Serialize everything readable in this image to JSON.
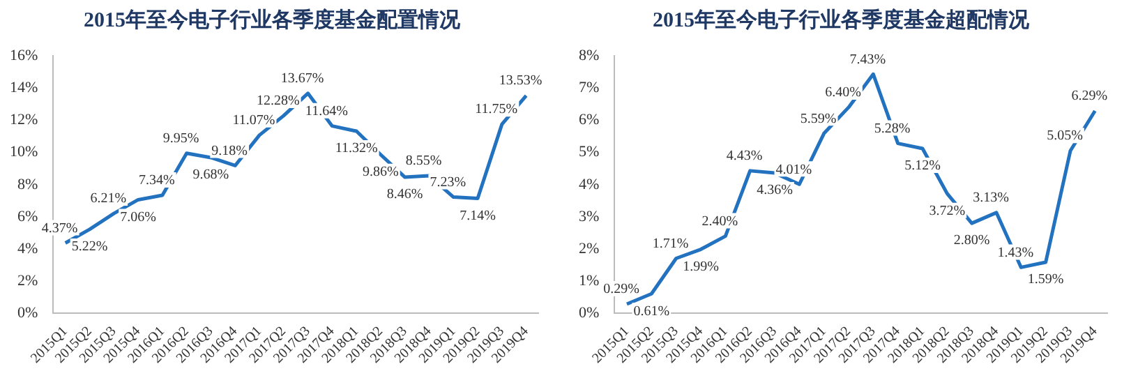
{
  "chart_data": [
    {
      "type": "line",
      "title": "2015年至今电子行业各季度基金配置情况",
      "categories": [
        "2015Q1",
        "2015Q2",
        "2015Q3",
        "2015Q4",
        "2016Q1",
        "2016Q2",
        "2016Q3",
        "2016Q4",
        "2017Q1",
        "2017Q2",
        "2017Q3",
        "2017Q4",
        "2018Q1",
        "2018Q2",
        "2018Q3",
        "2018Q4",
        "2019Q1",
        "2019Q2",
        "2019Q3",
        "2019Q4"
      ],
      "series": [
        {
          "color": "#2372c0",
          "values": [
            4.37,
            5.22,
            6.21,
            7.06,
            7.34,
            9.95,
            9.68,
            9.18,
            11.07,
            12.28,
            13.67,
            11.64,
            11.32,
            9.86,
            8.46,
            8.55,
            7.23,
            7.14,
            11.75,
            13.53
          ],
          "value_labels": [
            "4.37%",
            "5.22%",
            "6.21%",
            "7.06%",
            "7.34%",
            "9.95%",
            "9.68%",
            "9.18%",
            "11.07%",
            "12.28%",
            "13.67%",
            "11.64%",
            "11.32%",
            "9.86%",
            "8.46%",
            "8.55%",
            "7.23%",
            "7.14%",
            "11.75%",
            "13.53%"
          ]
        }
      ],
      "ylim": [
        0,
        16
      ],
      "yticks": [
        {
          "value": 0,
          "label": "0%"
        },
        {
          "value": 2,
          "label": "2%"
        },
        {
          "value": 4,
          "label": "4%"
        },
        {
          "value": 6,
          "label": "6%"
        },
        {
          "value": 8,
          "label": "8%"
        },
        {
          "value": 10,
          "label": "10%"
        },
        {
          "value": 12,
          "label": "12%"
        },
        {
          "value": 14,
          "label": "14%"
        },
        {
          "value": 16,
          "label": "16%"
        }
      ],
      "grid": false,
      "legend": false,
      "marker": "none",
      "line_style": "solid"
    },
    {
      "type": "line",
      "title": "2015年至今电子行业各季度基金超配情况",
      "categories": [
        "2015Q1",
        "2015Q2",
        "2015Q3",
        "2015Q4",
        "2016Q1",
        "2016Q2",
        "2016Q3",
        "2016Q4",
        "2017Q1",
        "2017Q2",
        "2017Q3",
        "2017Q4",
        "2018Q1",
        "2018Q2",
        "2018Q3",
        "2018Q4",
        "2019Q1",
        "2019Q2",
        "2019Q3",
        "2019Q4"
      ],
      "series": [
        {
          "color": "#2372c0",
          "values": [
            0.29,
            0.61,
            1.71,
            1.99,
            2.4,
            4.43,
            4.36,
            4.01,
            5.59,
            6.4,
            7.43,
            5.28,
            5.12,
            3.72,
            2.8,
            3.13,
            1.43,
            1.59,
            5.05,
            6.29
          ],
          "value_labels": [
            "0.29%",
            "0.61%",
            "1.71%",
            "1.99%",
            "2.40%",
            "4.43%",
            "4.36%",
            "4.01%",
            "5.59%",
            "6.40%",
            "7.43%",
            "5.28%",
            "5.12%",
            "3.72%",
            "2.80%",
            "3.13%",
            "1.43%",
            "1.59%",
            "5.05%",
            "6.29%"
          ]
        }
      ],
      "ylim": [
        0,
        8
      ],
      "yticks": [
        {
          "value": 0,
          "label": "0%"
        },
        {
          "value": 1,
          "label": "1%"
        },
        {
          "value": 2,
          "label": "2%"
        },
        {
          "value": 3,
          "label": "3%"
        },
        {
          "value": 4,
          "label": "4%"
        },
        {
          "value": 5,
          "label": "5%"
        },
        {
          "value": 6,
          "label": "6%"
        },
        {
          "value": 7,
          "label": "7%"
        },
        {
          "value": 8,
          "label": "8%"
        }
      ],
      "grid": false,
      "legend": false,
      "marker": "none",
      "line_style": "solid"
    }
  ]
}
